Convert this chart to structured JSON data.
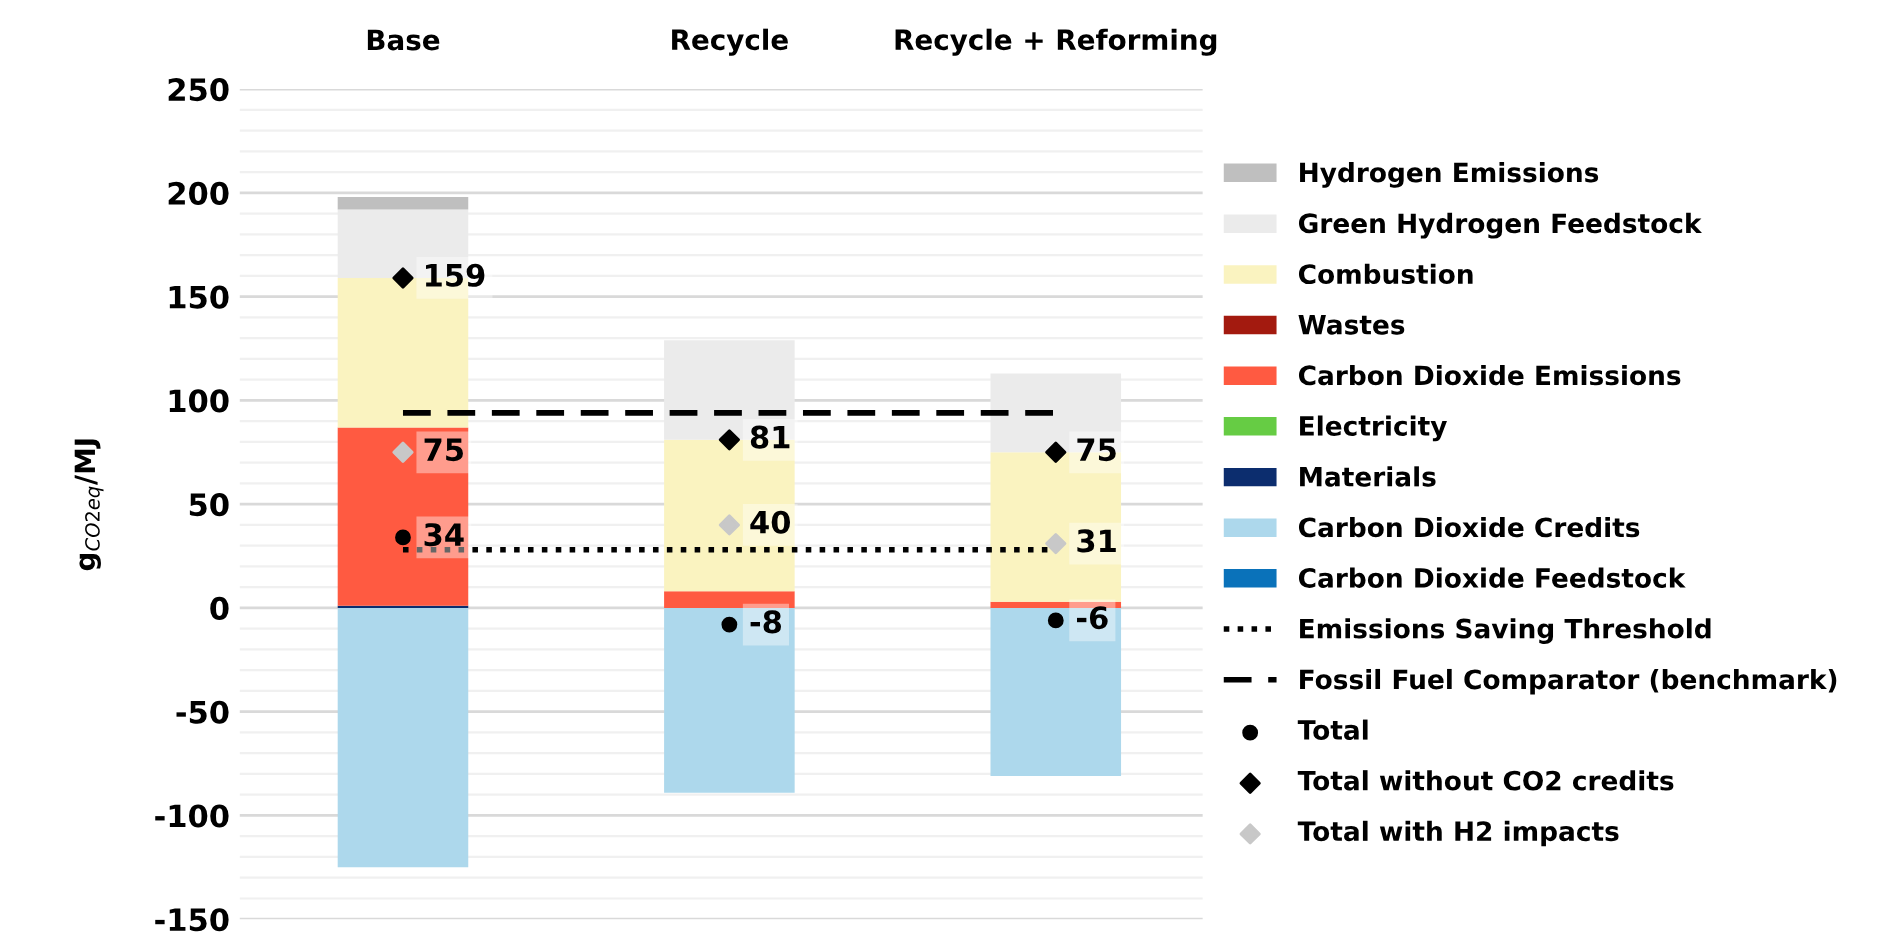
{
  "chart_data": {
    "type": "bar",
    "stacked": true,
    "ylabel": "g$_{CO2eq}$/MJ",
    "categories": [
      "Base",
      "Recycle",
      "Recycle + Reforming"
    ],
    "ylim": [
      -150,
      250
    ],
    "yticks": [
      -150,
      -100,
      -50,
      0,
      50,
      100,
      150,
      200,
      250
    ],
    "grid": "y",
    "legend": "right",
    "series": [
      {
        "name": "Carbon Dioxide Feedstock",
        "color": "#0a72ba",
        "values": [
          0,
          0,
          0
        ]
      },
      {
        "name": "Carbon Dioxide Credits",
        "color": "#add8ec",
        "values": [
          -125,
          -89,
          -81
        ]
      },
      {
        "name": "Materials",
        "color": "#0c2d6e",
        "values": [
          1,
          0,
          0
        ]
      },
      {
        "name": "Electricity",
        "color": "#66cc44",
        "values": [
          0,
          0,
          0
        ]
      },
      {
        "name": "Carbon Dioxide Emissions",
        "color": "#ff5a41",
        "values": [
          86,
          8,
          3
        ]
      },
      {
        "name": "Wastes",
        "color": "#a31a0f",
        "values": [
          0,
          0,
          0
        ]
      },
      {
        "name": "Combustion",
        "color": "#faf3c0",
        "values": [
          72,
          73,
          72
        ]
      },
      {
        "name": "Green Hydrogen Feedstock",
        "color": "#ebebeb",
        "values": [
          33,
          48,
          38
        ]
      },
      {
        "name": "Hydrogen Emissions",
        "color": "#bfbfbf",
        "values": [
          6,
          0,
          0
        ]
      },
      {
        "name": "Emissions Saving Threshold",
        "type": "line",
        "color": "#000000",
        "line_style": "dotted",
        "marker": "none",
        "values": [
          28,
          28,
          28
        ]
      },
      {
        "name": "Fossil Fuel Comparator (benchmark)",
        "type": "line",
        "color": "#000000",
        "line_style": "dashed",
        "marker": "none",
        "values": [
          94,
          94,
          94
        ]
      },
      {
        "name": "Total",
        "type": "scatter",
        "color": "#000000",
        "marker": "circle",
        "values": [
          34,
          -8,
          -6
        ],
        "value_labels": [
          "34",
          "-8",
          "-6"
        ]
      },
      {
        "name": "Total without CO2 credits",
        "type": "scatter",
        "color": "#000000",
        "marker": "diamond",
        "values": [
          159,
          81,
          75
        ],
        "value_labels": [
          "159",
          "81",
          "75"
        ]
      },
      {
        "name": "Total with H2 impacts",
        "type": "scatter",
        "color": "#c8c8c8",
        "marker": "diamond",
        "values": [
          75,
          40,
          31
        ],
        "value_labels": [
          "75",
          "40",
          "31"
        ]
      }
    ]
  }
}
